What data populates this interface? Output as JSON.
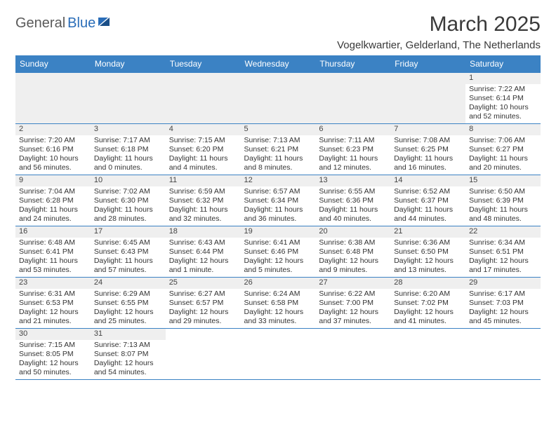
{
  "logo": {
    "part1": "General",
    "part2": "Blue"
  },
  "title": "March 2025",
  "location": "Vogelkwartier, Gelderland, The Netherlands",
  "colors": {
    "header_bg": "#3b82c4",
    "header_text": "#ffffff",
    "daynum_bg": "#efefef",
    "border": "#3b82c4",
    "brand_gray": "#5a5a5a",
    "brand_blue": "#2a6db8"
  },
  "dayHeaders": [
    "Sunday",
    "Monday",
    "Tuesday",
    "Wednesday",
    "Thursday",
    "Friday",
    "Saturday"
  ],
  "weeks": [
    [
      null,
      null,
      null,
      null,
      null,
      null,
      {
        "n": "1",
        "sr": "Sunrise: 7:22 AM",
        "ss": "Sunset: 6:14 PM",
        "d1": "Daylight: 10 hours",
        "d2": "and 52 minutes."
      }
    ],
    [
      {
        "n": "2",
        "sr": "Sunrise: 7:20 AM",
        "ss": "Sunset: 6:16 PM",
        "d1": "Daylight: 10 hours",
        "d2": "and 56 minutes."
      },
      {
        "n": "3",
        "sr": "Sunrise: 7:17 AM",
        "ss": "Sunset: 6:18 PM",
        "d1": "Daylight: 11 hours",
        "d2": "and 0 minutes."
      },
      {
        "n": "4",
        "sr": "Sunrise: 7:15 AM",
        "ss": "Sunset: 6:20 PM",
        "d1": "Daylight: 11 hours",
        "d2": "and 4 minutes."
      },
      {
        "n": "5",
        "sr": "Sunrise: 7:13 AM",
        "ss": "Sunset: 6:21 PM",
        "d1": "Daylight: 11 hours",
        "d2": "and 8 minutes."
      },
      {
        "n": "6",
        "sr": "Sunrise: 7:11 AM",
        "ss": "Sunset: 6:23 PM",
        "d1": "Daylight: 11 hours",
        "d2": "and 12 minutes."
      },
      {
        "n": "7",
        "sr": "Sunrise: 7:08 AM",
        "ss": "Sunset: 6:25 PM",
        "d1": "Daylight: 11 hours",
        "d2": "and 16 minutes."
      },
      {
        "n": "8",
        "sr": "Sunrise: 7:06 AM",
        "ss": "Sunset: 6:27 PM",
        "d1": "Daylight: 11 hours",
        "d2": "and 20 minutes."
      }
    ],
    [
      {
        "n": "9",
        "sr": "Sunrise: 7:04 AM",
        "ss": "Sunset: 6:28 PM",
        "d1": "Daylight: 11 hours",
        "d2": "and 24 minutes."
      },
      {
        "n": "10",
        "sr": "Sunrise: 7:02 AM",
        "ss": "Sunset: 6:30 PM",
        "d1": "Daylight: 11 hours",
        "d2": "and 28 minutes."
      },
      {
        "n": "11",
        "sr": "Sunrise: 6:59 AM",
        "ss": "Sunset: 6:32 PM",
        "d1": "Daylight: 11 hours",
        "d2": "and 32 minutes."
      },
      {
        "n": "12",
        "sr": "Sunrise: 6:57 AM",
        "ss": "Sunset: 6:34 PM",
        "d1": "Daylight: 11 hours",
        "d2": "and 36 minutes."
      },
      {
        "n": "13",
        "sr": "Sunrise: 6:55 AM",
        "ss": "Sunset: 6:36 PM",
        "d1": "Daylight: 11 hours",
        "d2": "and 40 minutes."
      },
      {
        "n": "14",
        "sr": "Sunrise: 6:52 AM",
        "ss": "Sunset: 6:37 PM",
        "d1": "Daylight: 11 hours",
        "d2": "and 44 minutes."
      },
      {
        "n": "15",
        "sr": "Sunrise: 6:50 AM",
        "ss": "Sunset: 6:39 PM",
        "d1": "Daylight: 11 hours",
        "d2": "and 48 minutes."
      }
    ],
    [
      {
        "n": "16",
        "sr": "Sunrise: 6:48 AM",
        "ss": "Sunset: 6:41 PM",
        "d1": "Daylight: 11 hours",
        "d2": "and 53 minutes."
      },
      {
        "n": "17",
        "sr": "Sunrise: 6:45 AM",
        "ss": "Sunset: 6:43 PM",
        "d1": "Daylight: 11 hours",
        "d2": "and 57 minutes."
      },
      {
        "n": "18",
        "sr": "Sunrise: 6:43 AM",
        "ss": "Sunset: 6:44 PM",
        "d1": "Daylight: 12 hours",
        "d2": "and 1 minute."
      },
      {
        "n": "19",
        "sr": "Sunrise: 6:41 AM",
        "ss": "Sunset: 6:46 PM",
        "d1": "Daylight: 12 hours",
        "d2": "and 5 minutes."
      },
      {
        "n": "20",
        "sr": "Sunrise: 6:38 AM",
        "ss": "Sunset: 6:48 PM",
        "d1": "Daylight: 12 hours",
        "d2": "and 9 minutes."
      },
      {
        "n": "21",
        "sr": "Sunrise: 6:36 AM",
        "ss": "Sunset: 6:50 PM",
        "d1": "Daylight: 12 hours",
        "d2": "and 13 minutes."
      },
      {
        "n": "22",
        "sr": "Sunrise: 6:34 AM",
        "ss": "Sunset: 6:51 PM",
        "d1": "Daylight: 12 hours",
        "d2": "and 17 minutes."
      }
    ],
    [
      {
        "n": "23",
        "sr": "Sunrise: 6:31 AM",
        "ss": "Sunset: 6:53 PM",
        "d1": "Daylight: 12 hours",
        "d2": "and 21 minutes."
      },
      {
        "n": "24",
        "sr": "Sunrise: 6:29 AM",
        "ss": "Sunset: 6:55 PM",
        "d1": "Daylight: 12 hours",
        "d2": "and 25 minutes."
      },
      {
        "n": "25",
        "sr": "Sunrise: 6:27 AM",
        "ss": "Sunset: 6:57 PM",
        "d1": "Daylight: 12 hours",
        "d2": "and 29 minutes."
      },
      {
        "n": "26",
        "sr": "Sunrise: 6:24 AM",
        "ss": "Sunset: 6:58 PM",
        "d1": "Daylight: 12 hours",
        "d2": "and 33 minutes."
      },
      {
        "n": "27",
        "sr": "Sunrise: 6:22 AM",
        "ss": "Sunset: 7:00 PM",
        "d1": "Daylight: 12 hours",
        "d2": "and 37 minutes."
      },
      {
        "n": "28",
        "sr": "Sunrise: 6:20 AM",
        "ss": "Sunset: 7:02 PM",
        "d1": "Daylight: 12 hours",
        "d2": "and 41 minutes."
      },
      {
        "n": "29",
        "sr": "Sunrise: 6:17 AM",
        "ss": "Sunset: 7:03 PM",
        "d1": "Daylight: 12 hours",
        "d2": "and 45 minutes."
      }
    ],
    [
      {
        "n": "30",
        "sr": "Sunrise: 7:15 AM",
        "ss": "Sunset: 8:05 PM",
        "d1": "Daylight: 12 hours",
        "d2": "and 50 minutes."
      },
      {
        "n": "31",
        "sr": "Sunrise: 7:13 AM",
        "ss": "Sunset: 8:07 PM",
        "d1": "Daylight: 12 hours",
        "d2": "and 54 minutes."
      },
      null,
      null,
      null,
      null,
      null
    ]
  ]
}
